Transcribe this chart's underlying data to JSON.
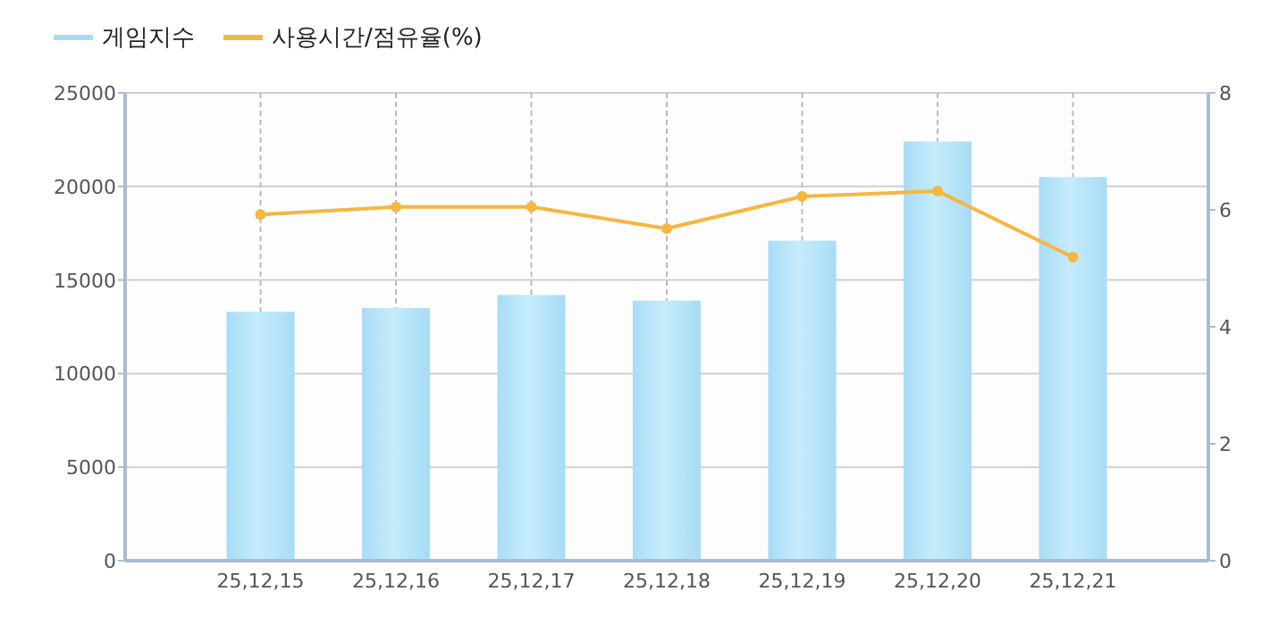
{
  "chart_data": {
    "type": "bar",
    "categories": [
      "25,12,15",
      "25,12,16",
      "25,12,17",
      "25,12,18",
      "25,12,19",
      "25,12,20",
      "25,12,21"
    ],
    "series": [
      {
        "name": "게임지수",
        "color": "#a8dcf5",
        "values": [
          13300,
          13500,
          14200,
          13900,
          17100,
          22400,
          20500
        ]
      },
      {
        "name": "사용시간/점유율(%)",
        "type": "line",
        "axis": "y2",
        "color": "#f5b642",
        "values": [
          5.92,
          6.05,
          6.05,
          5.68,
          6.23,
          6.32,
          5.19
        ]
      }
    ],
    "ylim": [
      0,
      25000
    ],
    "yticks": [
      0,
      5000,
      10000,
      15000,
      20000,
      25000
    ],
    "y2lim": [
      0,
      8
    ],
    "y2ticks": [
      0,
      2,
      4,
      6,
      8
    ],
    "grid": true,
    "legend": "top left",
    "marker": "circle"
  }
}
